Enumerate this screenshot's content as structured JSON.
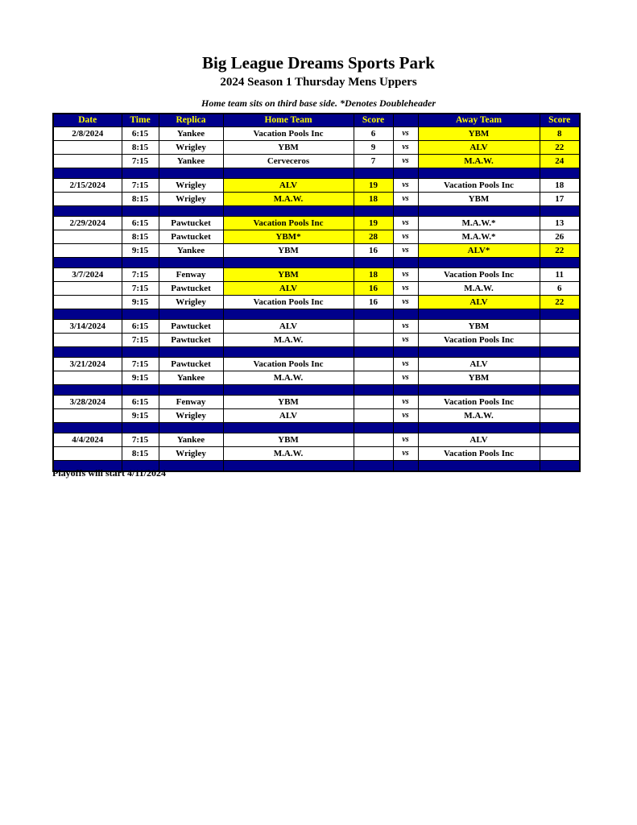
{
  "page": {
    "title": "Big League Dreams Sports Park",
    "subtitle": "2024 Season 1 Thursday Mens Uppers",
    "note": "Home team sits on third base side.  *Denotes Doubleheader",
    "footer": "Playoffs will start 4/11/2024"
  },
  "colors": {
    "navy": "#00008B",
    "highlight_yellow": "#FFFF00",
    "header_text": "#FFFF00"
  },
  "table": {
    "headers": [
      "Date",
      "Time",
      "Replica",
      "Home Team",
      "Score",
      "",
      "Away Team",
      "Score"
    ],
    "vs_label": "vs",
    "blocks": [
      {
        "date": "2/8/2024",
        "games": [
          {
            "time": "6:15",
            "replica": "Yankee",
            "home": "Vacation Pools Inc",
            "home_score": "6",
            "away": "YBM",
            "away_score": "8",
            "highlight": "away"
          },
          {
            "time": "8:15",
            "replica": "Wrigley",
            "home": "YBM",
            "home_score": "9",
            "away": "ALV",
            "away_score": "22",
            "highlight": "away"
          },
          {
            "time": "7:15",
            "replica": "Yankee",
            "home": "Cerveceros",
            "home_score": "7",
            "away": "M.A.W.",
            "away_score": "24",
            "highlight": "away"
          }
        ]
      },
      {
        "date": "2/15/2024",
        "games": [
          {
            "time": "7:15",
            "replica": "Wrigley",
            "home": "ALV",
            "home_score": "19",
            "away": "Vacation Pools Inc",
            "away_score": "18",
            "highlight": "home"
          },
          {
            "time": "8:15",
            "replica": "Wrigley",
            "home": "M.A.W.",
            "home_score": "18",
            "away": "YBM",
            "away_score": "17",
            "highlight": "home"
          }
        ]
      },
      {
        "date": "2/29/2024",
        "games": [
          {
            "time": "6:15",
            "replica": "Pawtucket",
            "home": "Vacation Pools Inc",
            "home_score": "19",
            "away": "M.A.W.*",
            "away_score": "13",
            "highlight": "home"
          },
          {
            "time": "8:15",
            "replica": "Pawtucket",
            "home": "YBM*",
            "home_score": "28",
            "away": "M.A.W.*",
            "away_score": "26",
            "highlight": "home"
          },
          {
            "time": "9:15",
            "replica": "Yankee",
            "home": "YBM",
            "home_score": "16",
            "away": "ALV*",
            "away_score": "22",
            "highlight": "away"
          }
        ]
      },
      {
        "date": "3/7/2024",
        "games": [
          {
            "time": "7:15",
            "replica": "Fenway",
            "home": "YBM",
            "home_score": "18",
            "away": "Vacation Pools Inc",
            "away_score": "11",
            "highlight": "home"
          },
          {
            "time": "7:15",
            "replica": "Pawtucket",
            "home": "ALV",
            "home_score": "16",
            "away": "M.A.W.",
            "away_score": "6",
            "highlight": "home"
          },
          {
            "time": "9:15",
            "replica": "Wrigley",
            "home": "Vacation Pools Inc",
            "home_score": "16",
            "away": "ALV",
            "away_score": "22",
            "highlight": "away"
          }
        ]
      },
      {
        "date": "3/14/2024",
        "games": [
          {
            "time": "6:15",
            "replica": "Pawtucket",
            "home": "ALV",
            "home_score": "",
            "away": "YBM",
            "away_score": "",
            "highlight": "none"
          },
          {
            "time": "7:15",
            "replica": "Pawtucket",
            "home": "M.A.W.",
            "home_score": "",
            "away": "Vacation Pools Inc",
            "away_score": "",
            "highlight": "none"
          }
        ]
      },
      {
        "date": "3/21/2024",
        "games": [
          {
            "time": "7:15",
            "replica": "Pawtucket",
            "home": "Vacation Pools Inc",
            "home_score": "",
            "away": "ALV",
            "away_score": "",
            "highlight": "none"
          },
          {
            "time": "9:15",
            "replica": "Yankee",
            "home": "M.A.W.",
            "home_score": "",
            "away": "YBM",
            "away_score": "",
            "highlight": "none"
          }
        ]
      },
      {
        "date": "3/28/2024",
        "games": [
          {
            "time": "6:15",
            "replica": "Fenway",
            "home": "YBM",
            "home_score": "",
            "away": "Vacation Pools Inc",
            "away_score": "",
            "highlight": "none"
          },
          {
            "time": "9:15",
            "replica": "Wrigley",
            "home": "ALV",
            "home_score": "",
            "away": "M.A.W.",
            "away_score": "",
            "highlight": "none"
          }
        ]
      },
      {
        "date": "4/4/2024",
        "games": [
          {
            "time": "7:15",
            "replica": "Yankee",
            "home": "YBM",
            "home_score": "",
            "away": "ALV",
            "away_score": "",
            "highlight": "none"
          },
          {
            "time": "8:15",
            "replica": "Wrigley",
            "home": "M.A.W.",
            "home_score": "",
            "away": "Vacation Pools Inc",
            "away_score": "",
            "highlight": "none"
          }
        ]
      }
    ]
  }
}
